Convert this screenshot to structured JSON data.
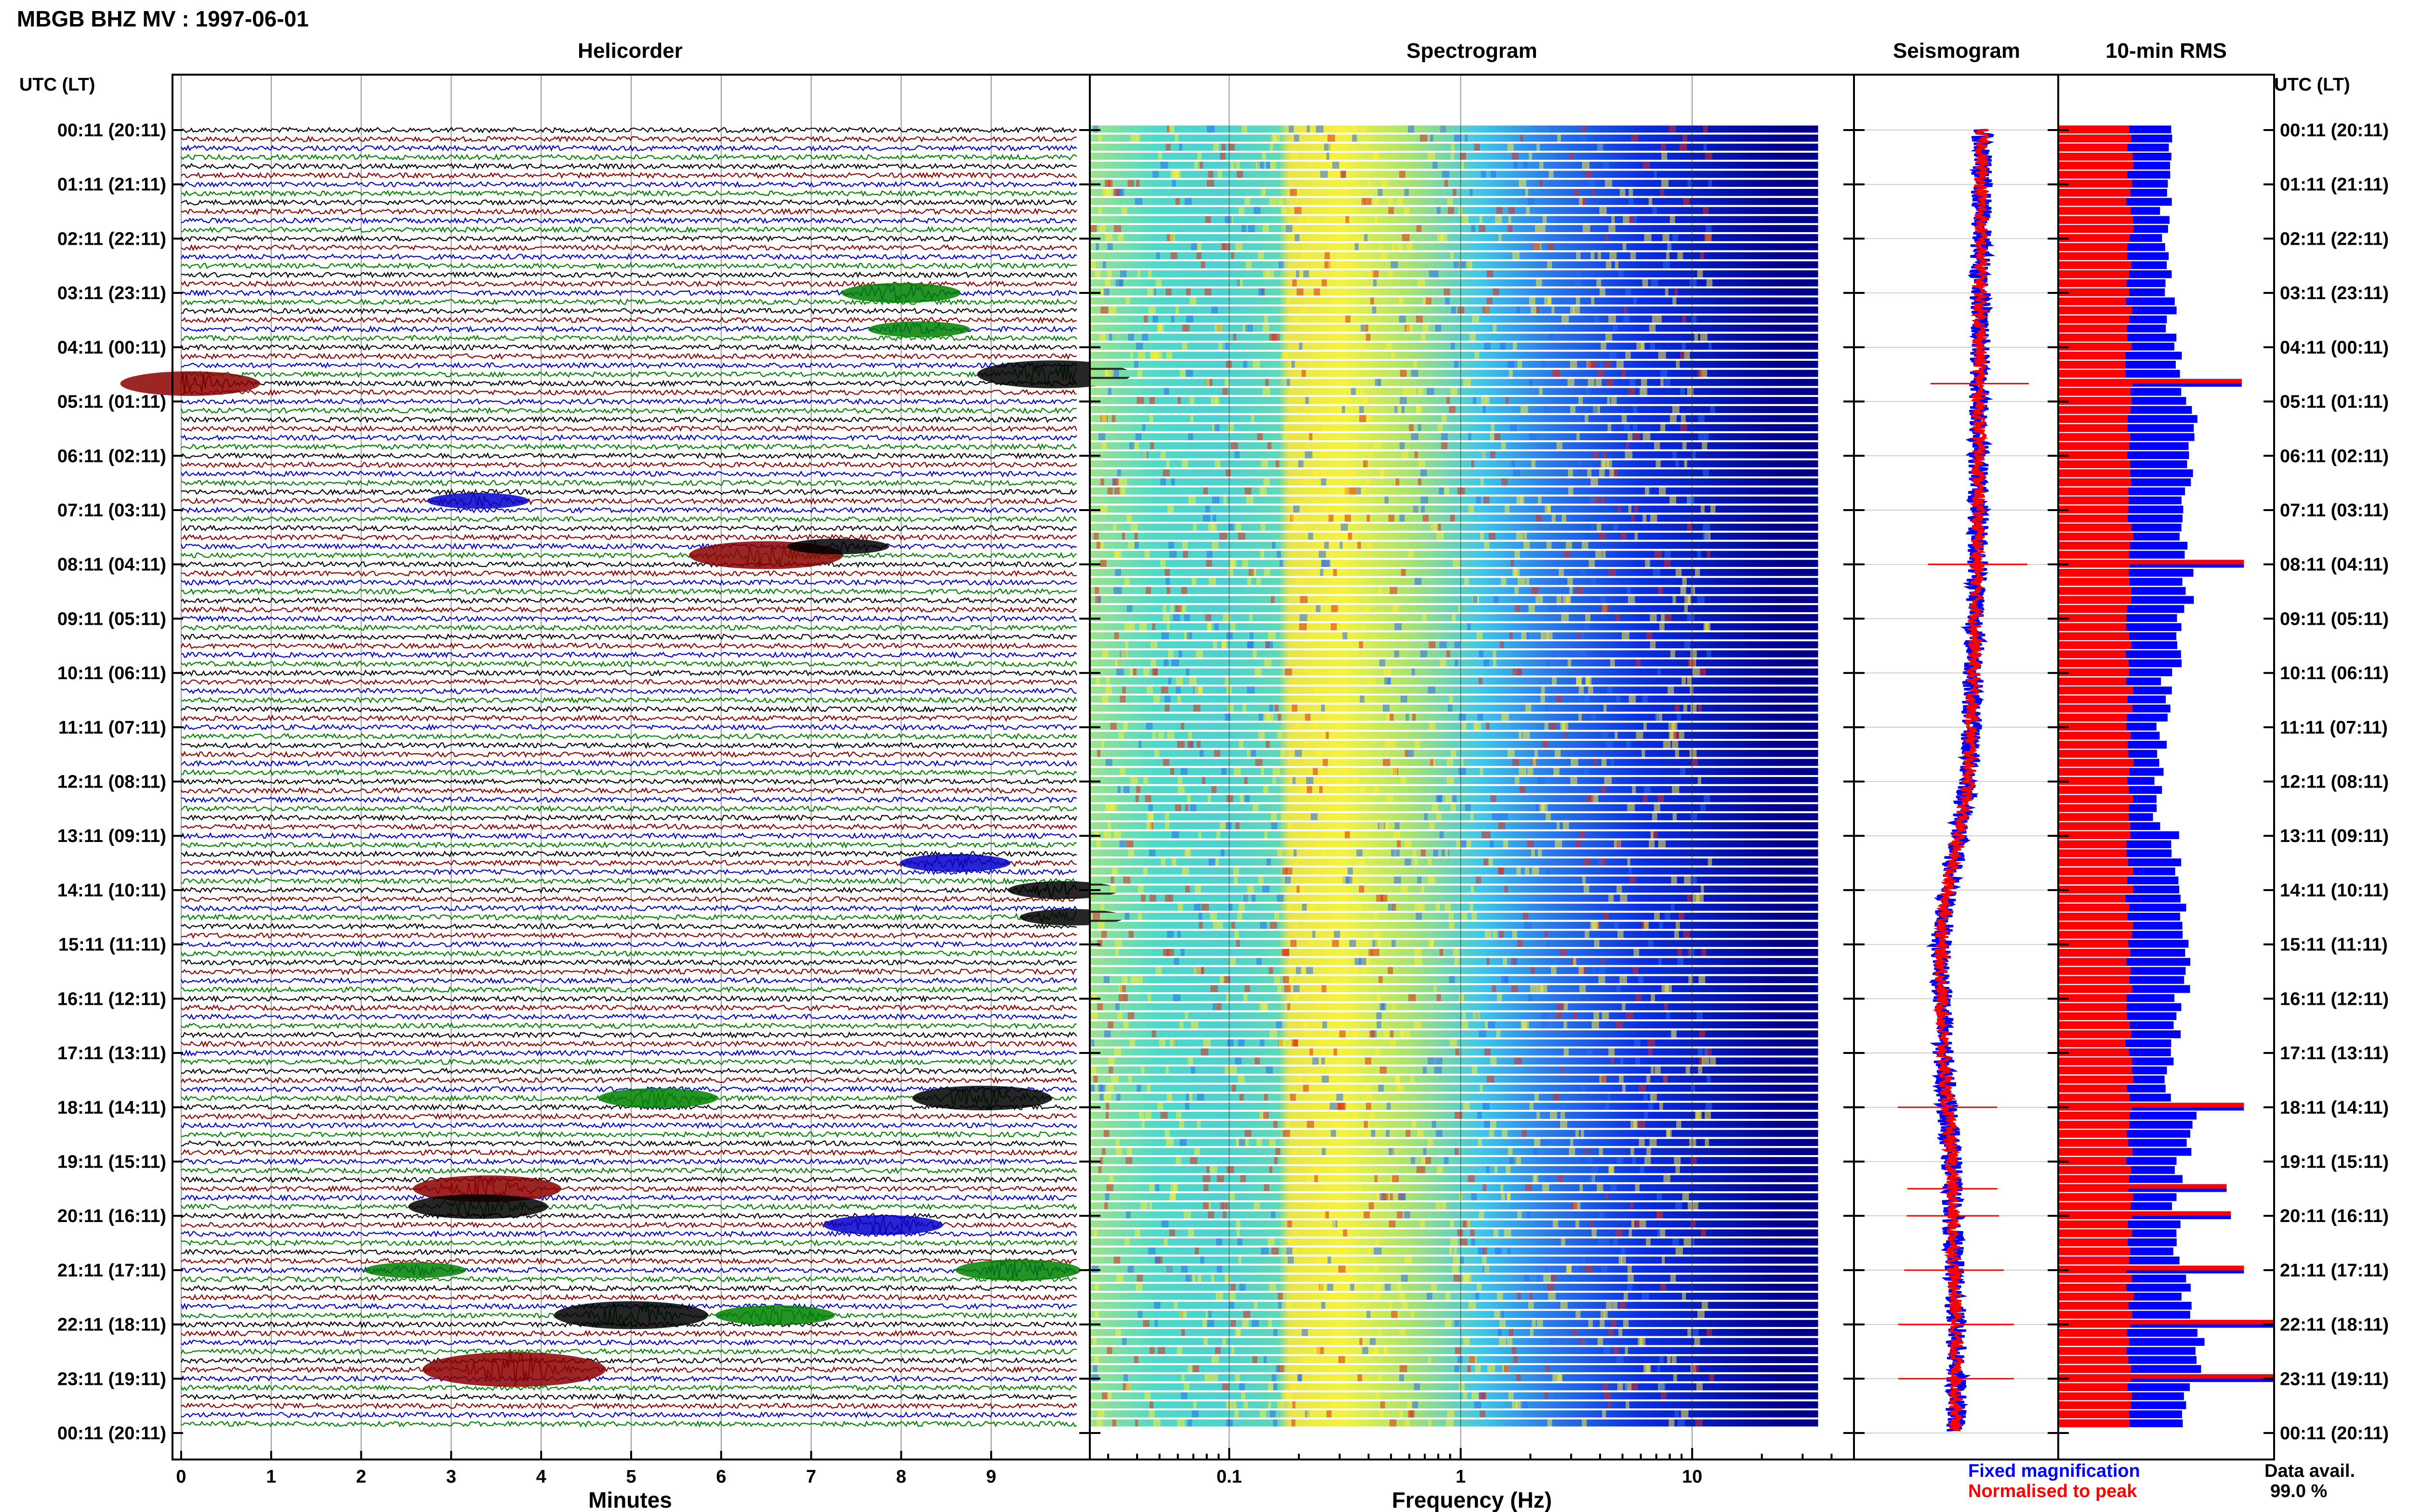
{
  "header": {
    "title": "MBGB BHZ MV : 1997-06-01"
  },
  "panels": {
    "helicorder": {
      "title": "Helicorder",
      "xlabel": "Minutes"
    },
    "spectrogram": {
      "title": "Spectrogram",
      "xlabel": "Frequency (Hz)"
    },
    "seismogram": {
      "title": "Seismogram"
    },
    "rms": {
      "title": "10-min RMS"
    }
  },
  "time_axis": {
    "label_left": "UTC (LT)",
    "label_right": "UTC (LT)",
    "labels": [
      "00:11 (20:11)",
      "01:11 (21:11)",
      "02:11 (22:11)",
      "03:11 (23:11)",
      "04:11 (00:11)",
      "05:11 (01:11)",
      "06:11 (02:11)",
      "07:11 (03:11)",
      "08:11 (04:11)",
      "09:11 (05:11)",
      "10:11 (06:11)",
      "11:11 (07:11)",
      "12:11 (08:11)",
      "13:11 (09:11)",
      "14:11 (10:11)",
      "15:11 (11:11)",
      "16:11 (12:11)",
      "17:11 (13:11)",
      "18:11 (14:11)",
      "19:11 (15:11)",
      "20:11 (16:11)",
      "21:11 (17:11)",
      "22:11 (18:11)",
      "23:11 (19:11)",
      "00:11 (20:11)"
    ]
  },
  "legend": {
    "fixed": {
      "label": "Fixed magnification",
      "color": "#0000ff"
    },
    "normalised": {
      "label": "Normalised to peak",
      "color": "#ff0000"
    }
  },
  "availability": {
    "label": "Data avail.",
    "value": "99.0 %"
  },
  "chart_data": [
    {
      "type": "line",
      "name": "helicorder",
      "title": "Helicorder",
      "xlabel": "Minutes",
      "xlim": [
        0,
        10
      ],
      "x_ticks": [
        "0",
        "1",
        "2",
        "3",
        "4",
        "5",
        "6",
        "7",
        "8",
        "9"
      ],
      "trace_colors": [
        "#000000",
        "#8b0000",
        "#0000cd",
        "#008000"
      ],
      "traces_per_hour": 6,
      "events": [
        {
          "hour": 4.67,
          "minute": 0.1,
          "amp": 2.5,
          "color": "#8b0000"
        },
        {
          "hour": 4.5,
          "minute": 9.7,
          "amp": 3,
          "color": "#000000"
        },
        {
          "hour": 3.0,
          "minute": 8.0,
          "amp": 1.8,
          "color": "#008000"
        },
        {
          "hour": 3.67,
          "minute": 8.2,
          "amp": 1.2,
          "color": "#008000"
        },
        {
          "hour": 7.83,
          "minute": 6.5,
          "amp": 3,
          "color": "#8b0000"
        },
        {
          "hour": 7.67,
          "minute": 7.3,
          "amp": 1.2,
          "color": "#000000"
        },
        {
          "hour": 17.83,
          "minute": 8.9,
          "amp": 2.5,
          "color": "#000000"
        },
        {
          "hour": 17.83,
          "minute": 5.3,
          "amp": 1.8,
          "color": "#008000"
        },
        {
          "hour": 19.5,
          "minute": 3.4,
          "amp": 2.8,
          "color": "#8b0000"
        },
        {
          "hour": 19.83,
          "minute": 3.3,
          "amp": 2.5,
          "color": "#000000"
        },
        {
          "hour": 20.17,
          "minute": 7.8,
          "amp": 1.8,
          "color": "#0000cd"
        },
        {
          "hour": 21.0,
          "minute": 9.3,
          "amp": 2,
          "color": "#008000"
        },
        {
          "hour": 21.0,
          "minute": 2.6,
          "amp": 1.2,
          "color": "#008000"
        },
        {
          "hour": 21.83,
          "minute": 5.0,
          "amp": 3,
          "color": "#000000"
        },
        {
          "hour": 21.83,
          "minute": 6.6,
          "amp": 1.8,
          "color": "#008000"
        },
        {
          "hour": 22.83,
          "minute": 3.7,
          "amp": 4,
          "color": "#8b0000"
        },
        {
          "hour": 13.5,
          "minute": 8.6,
          "amp": 1.5,
          "color": "#0000cd"
        },
        {
          "hour": 14.0,
          "minute": 9.8,
          "amp": 1.5,
          "color": "#000000"
        },
        {
          "hour": 14.5,
          "minute": 9.9,
          "amp": 1.3,
          "color": "#000000"
        },
        {
          "hour": 6.83,
          "minute": 3.3,
          "amp": 1.2,
          "color": "#0000cd"
        }
      ]
    },
    {
      "type": "heatmap",
      "name": "spectrogram",
      "title": "Spectrogram",
      "xlabel": "Frequency (Hz)",
      "xscale": "log",
      "xlim": [
        0.025,
        50
      ],
      "x_ticks": [
        "0.1",
        "1",
        "10"
      ],
      "band_colors": [
        {
          "f": 0.025,
          "color": "#9de38a"
        },
        {
          "f": 0.05,
          "color": "#4fd9c8"
        },
        {
          "f": 0.1,
          "color": "#4fd0d0"
        },
        {
          "f": 0.18,
          "color": "#5fd8b8"
        },
        {
          "f": 0.2,
          "color": "#e6e44a"
        },
        {
          "f": 0.35,
          "color": "#f4f23e"
        },
        {
          "f": 0.7,
          "color": "#a9e36f"
        },
        {
          "f": 1.5,
          "color": "#3fc6e8"
        },
        {
          "f": 3,
          "color": "#2b7be8"
        },
        {
          "f": 8,
          "color": "#0a2ee0"
        },
        {
          "f": 35,
          "color": "#00008b"
        }
      ]
    },
    {
      "type": "line",
      "name": "seismogram",
      "title": "Seismogram",
      "series": [
        {
          "name": "Fixed magnification",
          "color": "#0000ff"
        },
        {
          "name": "Normalised to peak",
          "color": "#ff0000"
        }
      ],
      "drift": [
        [
          0,
          0.6
        ],
        [
          4,
          0.55
        ],
        [
          8,
          0.5
        ],
        [
          12,
          0.3
        ],
        [
          14,
          -0.2
        ],
        [
          15,
          -0.35
        ],
        [
          17,
          -0.3
        ],
        [
          19,
          -0.1
        ],
        [
          21,
          -0.05
        ],
        [
          22,
          0.0
        ],
        [
          24,
          0.0
        ]
      ]
    },
    {
      "type": "bar",
      "name": "rms",
      "title": "10-min RMS",
      "xlim": [
        0,
        1
      ],
      "series": [
        {
          "name": "Fixed magnification",
          "color": "#0000ff"
        },
        {
          "name": "Normalised to peak",
          "color": "#ff0000"
        }
      ],
      "rms_by_hour": [
        0.5,
        0.5,
        0.5,
        0.52,
        0.55,
        0.62,
        0.6,
        0.58,
        0.6,
        0.55,
        0.5,
        0.48,
        0.46,
        0.55,
        0.58,
        0.6,
        0.55,
        0.52,
        0.62,
        0.55,
        0.55,
        0.6,
        0.65,
        0.6
      ],
      "peaks": [
        {
          "hour": 4.67,
          "value": 0.85
        },
        {
          "hour": 8.0,
          "value": 0.86
        },
        {
          "hour": 18.0,
          "value": 0.86
        },
        {
          "hour": 19.5,
          "value": 0.78
        },
        {
          "hour": 20.0,
          "value": 0.8
        },
        {
          "hour": 21.0,
          "value": 0.86
        },
        {
          "hour": 22.0,
          "value": 1.0
        },
        {
          "hour": 23.0,
          "value": 1.0
        }
      ]
    }
  ]
}
